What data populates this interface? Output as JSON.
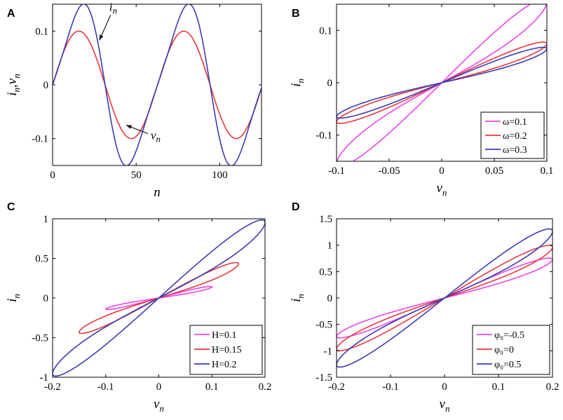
{
  "chart_data": [
    {
      "panel": "A",
      "type": "line",
      "xlabel": "n",
      "ylabel": "i_n, v_n",
      "xlim": [
        0,
        125
      ],
      "ylim": [
        -0.15,
        0.15
      ],
      "xticks": [
        0,
        50,
        100
      ],
      "xtick_labels": [
        "0",
        "50",
        "100"
      ],
      "yticks": [
        -0.1,
        0,
        0.1
      ],
      "ytick_labels": [
        "-0.1",
        "0",
        "0.1"
      ],
      "annotations": [
        {
          "text": "i",
          "sub": "n",
          "x": 28,
          "y": 0.083
        },
        {
          "text": "v",
          "sub": "n",
          "x": 44,
          "y": -0.075
        }
      ],
      "series": [
        {
          "name": "v_n",
          "color": "#e8383d",
          "period": 62.8,
          "amplitude": 0.1,
          "kind": "sine"
        },
        {
          "name": "i_n",
          "color": "#3c3cb4",
          "period": 62.8,
          "amplitude": 0.1,
          "kind": "memristor",
          "H": 0.1,
          "phi0": 0
        }
      ]
    },
    {
      "panel": "B",
      "type": "line",
      "xlabel": "v_n",
      "ylabel": "i_n",
      "xlim": [
        -0.1,
        0.1
      ],
      "ylim": [
        -0.15,
        0.15
      ],
      "xticks": [
        -0.1,
        -0.05,
        0,
        0.05,
        0.1
      ],
      "xtick_labels": [
        "-0.1",
        "-0.05",
        "0",
        "0.05",
        "0.1"
      ],
      "yticks": [
        -0.1,
        0,
        0.1
      ],
      "ytick_labels": [
        "-0.1",
        "0",
        "0.1"
      ],
      "legend": "bottom-right",
      "series": [
        {
          "name": "ω=0.1",
          "color": "#ee44ee",
          "amplitude": 0.1,
          "kind": "loop",
          "peak": 0.143,
          "skew": 0.8
        },
        {
          "name": "ω=0.2",
          "color": "#e8383d",
          "amplitude": 0.1,
          "kind": "loop",
          "peak": 0.068,
          "skew": 0.85
        },
        {
          "name": "ω=0.3",
          "color": "#3c3cb4",
          "amplitude": 0.1,
          "kind": "loop",
          "peak": 0.058,
          "skew": 0.9
        }
      ]
    },
    {
      "panel": "C",
      "type": "line",
      "xlabel": "v_n",
      "ylabel": "i_n",
      "xlim": [
        -0.2,
        0.2
      ],
      "ylim": [
        -1,
        1
      ],
      "xticks": [
        -0.2,
        -0.1,
        0,
        0.1,
        0.2
      ],
      "xtick_labels": [
        "-0.2",
        "-0.1",
        "0",
        "0.1",
        "0.2"
      ],
      "yticks": [
        -1,
        -0.5,
        0,
        0.5,
        1
      ],
      "ytick_labels": [
        "-1",
        "-0.5",
        "0",
        "0.5",
        "1"
      ],
      "legend": "bottom-right",
      "series": [
        {
          "name": "H=0.1",
          "color": "#ee44ee",
          "amplitude": 0.1,
          "kind": "loop",
          "peak": 0.13,
          "skew": 0.8
        },
        {
          "name": "H=0.15",
          "color": "#e8383d",
          "amplitude": 0.15,
          "kind": "loop",
          "peak": 0.4,
          "skew": 0.8
        },
        {
          "name": "H=0.2",
          "color": "#3c3cb4",
          "amplitude": 0.2,
          "kind": "loop",
          "peak": 0.9,
          "skew": 0.75
        }
      ]
    },
    {
      "panel": "D",
      "type": "line",
      "xlabel": "v_n",
      "ylabel": "i_n",
      "xlim": [
        -0.2,
        0.2
      ],
      "ylim": [
        -1.5,
        1.5
      ],
      "xticks": [
        -0.2,
        -0.1,
        0,
        0.1,
        0.2
      ],
      "xtick_labels": [
        "-0.2",
        "-0.1",
        "0",
        "0.1",
        "0.2"
      ],
      "yticks": [
        -1.5,
        -1,
        -0.5,
        0,
        0.5,
        1,
        1.5
      ],
      "ytick_labels": [
        "-1.5",
        "-1",
        "-0.5",
        "0",
        "0.5",
        "1",
        "1.5"
      ],
      "legend": "bottom-right",
      "series": [
        {
          "name": "φ₀=-0.5",
          "color": "#ee44ee",
          "amplitude": 0.2,
          "kind": "loop",
          "peak": 0.68,
          "skew": 0.78
        },
        {
          "name": "φ₀=0",
          "color": "#e8383d",
          "amplitude": 0.2,
          "kind": "loop",
          "peak": 0.9,
          "skew": 0.78
        },
        {
          "name": "φ₀=0.5",
          "color": "#3c3cb4",
          "amplitude": 0.2,
          "kind": "loop",
          "peak": 1.18,
          "skew": 0.78
        }
      ]
    }
  ]
}
